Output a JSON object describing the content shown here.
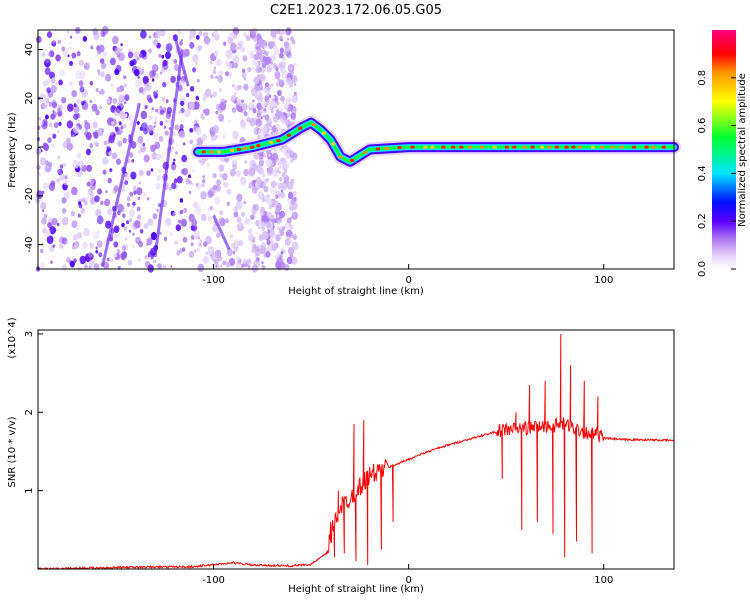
{
  "title": "C2E1.2023.172.06.05.G05",
  "chart_data": [
    {
      "type": "heatmap",
      "xlabel": "Height of straight line (km)",
      "ylabel": "Frequency (Hz)",
      "xlim": [
        -190,
        136
      ],
      "ylim": [
        -50,
        48
      ],
      "x_ticks": [
        -100,
        0,
        100
      ],
      "y_ticks": [
        -40,
        -20,
        0,
        20,
        40
      ],
      "colorbar": {
        "label": "Normalized spectral amplitude",
        "range": [
          0.0,
          1.0
        ],
        "ticks": [
          0.0,
          0.2,
          0.4,
          0.6,
          0.8
        ],
        "colors": [
          "#ffffff",
          "#e6d5f8",
          "#9a5ce6",
          "#4b00ff",
          "#0019ff",
          "#00e5ff",
          "#00ff40",
          "#ffff00",
          "#ff8c00",
          "#ff0000"
        ]
      },
      "ridge": {
        "description_points_x": [
          -108,
          -95,
          -80,
          -65,
          -55,
          -50,
          -45,
          -40,
          -35,
          -30,
          -20,
          0,
          20,
          40,
          60,
          80,
          100,
          136
        ],
        "description_points_y": [
          -2,
          -2,
          0,
          3,
          8,
          10,
          7,
          3,
          -4,
          -6,
          -1,
          0,
          0,
          0,
          0,
          0,
          0,
          0
        ]
      }
    },
    {
      "type": "line",
      "xlabel": "Height of straight line (km)",
      "ylabel": "SNR (10 * v/v)",
      "y_multiplier": "(x10^4)",
      "xlim": [
        -190,
        136
      ],
      "ylim": [
        0,
        3.05
      ],
      "x_ticks": [
        -100,
        0,
        100
      ],
      "y_ticks": [
        1,
        2,
        3
      ],
      "series": [
        {
          "color": "#ff0000",
          "x": [
            -190,
            -150,
            -110,
            -90,
            -80,
            -60,
            -50,
            -42,
            -38,
            -35,
            -30,
            -25,
            -20,
            -15,
            -10,
            -5,
            0,
            10,
            20,
            30,
            40,
            50,
            60,
            70,
            75,
            80,
            85,
            90,
            95,
            98,
            100,
            110,
            120,
            136
          ],
          "y": [
            0.0,
            0.02,
            0.03,
            0.08,
            0.05,
            0.04,
            0.06,
            0.2,
            0.6,
            0.8,
            0.9,
            1.05,
            1.2,
            1.25,
            1.3,
            1.35,
            1.4,
            1.5,
            1.58,
            1.65,
            1.72,
            1.78,
            1.8,
            1.82,
            1.83,
            1.85,
            1.8,
            1.75,
            1.72,
            1.7,
            1.67,
            1.65,
            1.65,
            1.64
          ],
          "spikes": [
            {
              "x": -40,
              "y": 0.6
            },
            {
              "x": -38,
              "y": 0.15
            },
            {
              "x": -36,
              "y": 1.0
            },
            {
              "x": -33,
              "y": 0.2
            },
            {
              "x": -28,
              "y": 1.85
            },
            {
              "x": -27,
              "y": 0.1
            },
            {
              "x": -23,
              "y": 1.9
            },
            {
              "x": -21,
              "y": 0.05
            },
            {
              "x": -14,
              "y": 0.25
            },
            {
              "x": -8,
              "y": 0.6
            },
            {
              "x": 48,
              "y": 1.15
            },
            {
              "x": 55,
              "y": 2.0
            },
            {
              "x": 58,
              "y": 0.5
            },
            {
              "x": 62,
              "y": 2.35
            },
            {
              "x": 66,
              "y": 0.6
            },
            {
              "x": 70,
              "y": 2.4
            },
            {
              "x": 74,
              "y": 0.45
            },
            {
              "x": 78,
              "y": 3.0
            },
            {
              "x": 80,
              "y": 0.15
            },
            {
              "x": 83,
              "y": 2.6
            },
            {
              "x": 86,
              "y": 0.35
            },
            {
              "x": 90,
              "y": 2.4
            },
            {
              "x": 94,
              "y": 0.2
            },
            {
              "x": 97,
              "y": 2.2
            }
          ]
        }
      ]
    }
  ]
}
